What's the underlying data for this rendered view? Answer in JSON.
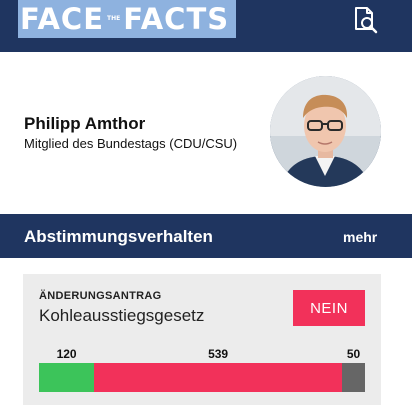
{
  "header": {
    "logo": {
      "word1": "FACE",
      "small": "THE",
      "word2": "FACTS"
    },
    "search_icon": "document-search-icon",
    "colors": {
      "bar": "#1f3560",
      "logo_bg": "#8eb2df"
    }
  },
  "profile": {
    "name": "Philipp Amthor",
    "role": "Mitglied des Bundestags (CDU/CSU)",
    "avatar": "profile-photo"
  },
  "section": {
    "title": "Abstimmungsverhalten",
    "more_label": "mehr"
  },
  "vote_card": {
    "kind": "ÄNDERUNGSANTRAG",
    "title": "Kohleausstiegsgesetz",
    "badge": "NEIN",
    "badge_color": "#f2315a",
    "results": [
      {
        "label": "120",
        "value": 120,
        "color": "#3cc45a"
      },
      {
        "label": "539",
        "value": 539,
        "color": "#f2315a"
      },
      {
        "label": "50",
        "value": 50,
        "color": "#666666"
      }
    ]
  }
}
